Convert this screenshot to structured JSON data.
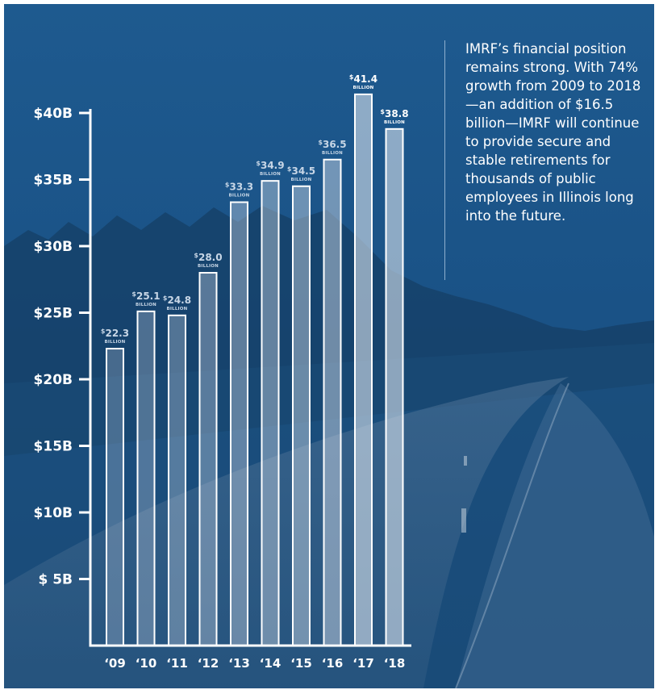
{
  "annotation": {
    "text": "IMRF’s financial position remains strong. With 74% growth from 2009 to 2018—an addition of $16.5 billion—IMRF will continue to provide secure and stable retirements for thousands of public employees in Illinois long into the future."
  },
  "colors": {
    "panel_background": "#1b5588",
    "bar_fill": "#d4deea",
    "bar_outline": "#ffffff",
    "axis": "#ffffff",
    "value_label": "#c7d6e6"
  },
  "chart_data": {
    "type": "bar",
    "categories": [
      "‘09",
      "‘10",
      "‘11",
      "‘12",
      "‘13",
      "‘14",
      "‘15",
      "‘16",
      "‘17",
      "‘18"
    ],
    "values": [
      22.3,
      25.1,
      24.8,
      28.0,
      33.3,
      34.9,
      34.5,
      36.5,
      41.4,
      38.8
    ],
    "data_labels": [
      {
        "symbol": "$",
        "number": "22.3",
        "unit": "BILLION"
      },
      {
        "symbol": "$",
        "number": "25.1",
        "unit": "BILLION"
      },
      {
        "symbol": "$",
        "number": "24.8",
        "unit": "BILLION"
      },
      {
        "symbol": "$",
        "number": "28.0",
        "unit": "BILLION"
      },
      {
        "symbol": "$",
        "number": "33.3",
        "unit": "BILLION"
      },
      {
        "symbol": "$",
        "number": "34.9",
        "unit": "BILLION"
      },
      {
        "symbol": "$",
        "number": "34.5",
        "unit": "BILLION"
      },
      {
        "symbol": "$",
        "number": "36.5",
        "unit": "BILLION"
      },
      {
        "symbol": "$",
        "number": "41.4",
        "unit": "BILLION"
      },
      {
        "symbol": "$",
        "number": "38.8",
        "unit": "BILLION"
      }
    ],
    "highlight_indices": [
      8,
      9
    ],
    "y_ticks": [
      5,
      10,
      15,
      20,
      25,
      30,
      35,
      40
    ],
    "y_tick_labels": [
      "$  5B",
      "$10B",
      "$15B",
      "$20B",
      "$25B",
      "$30B",
      "$35B",
      "$40B"
    ],
    "ylim": [
      0,
      40
    ],
    "title": "",
    "xlabel": "",
    "ylabel": "",
    "grid": false,
    "legend": "none"
  }
}
